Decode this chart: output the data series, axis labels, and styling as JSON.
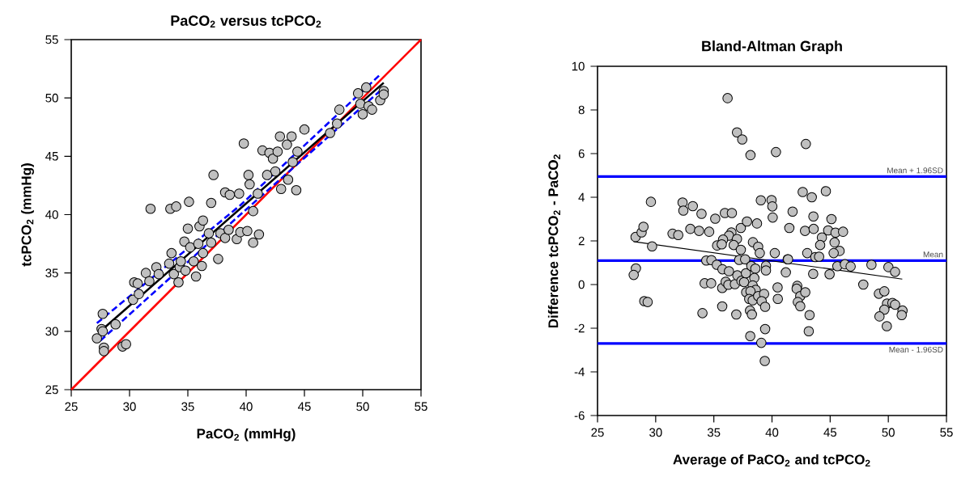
{
  "chart_data": [
    {
      "type": "scatter",
      "title": "PaCO$_{2}$ versus tcPCO$_{2}$",
      "xlabel": "PaCO$_{2}$ (mmHg)",
      "ylabel": "tcPCO$_{2}$ (mmHg)",
      "xlim": [
        25,
        55
      ],
      "ylim": [
        25,
        55
      ],
      "xticks": [
        25,
        30,
        35,
        40,
        45,
        50,
        55
      ],
      "yticks": [
        25,
        30,
        35,
        40,
        45,
        50,
        55
      ],
      "series": [
        {
          "type": "scatter",
          "color": "#c0c0c0",
          "marker": "circle",
          "x": [
            27.2,
            27.6,
            27.7,
            27.8,
            27.8,
            27.7,
            28.8,
            29.4,
            29.7,
            30.3,
            30.4,
            30.7,
            30.8,
            31.4,
            31.7,
            32.3,
            32.5,
            33.4,
            33.6,
            33.8,
            34.2,
            34.3,
            34.4,
            34.7,
            34.8,
            35.0,
            35.2,
            35.5,
            35.7,
            35.9,
            36.0,
            36.2,
            36.3,
            36.8,
            37.0,
            37.6,
            37.8,
            38.2,
            38.5,
            39.2,
            39.5,
            40.1,
            40.6,
            41.1,
            31.8,
            33.5,
            34.0,
            35.1,
            37.2,
            38.2,
            38.6,
            36.3,
            37.0,
            39.4,
            39.8,
            40.2,
            40.3,
            40.6,
            41.0,
            41.4,
            42.0,
            42.3,
            42.7,
            42.9,
            43.5,
            43.9,
            44.4,
            45.0,
            43.0,
            43.6,
            44.3,
            44.0,
            42.5,
            41.8,
            47.2,
            48.0,
            49.6,
            50.3,
            49.8,
            50.0,
            50.5,
            50.8,
            51.5,
            51.8,
            51.8,
            47.8
          ],
          "values": [
            29.4,
            30.2,
            31.5,
            28.6,
            28.3,
            30.0,
            30.6,
            28.7,
            28.9,
            32.7,
            34.2,
            34.1,
            33.2,
            35.0,
            34.3,
            35.5,
            34.9,
            35.8,
            36.7,
            34.9,
            34.2,
            35.5,
            36.0,
            37.7,
            35.2,
            38.8,
            37.2,
            36.0,
            34.7,
            37.5,
            39.0,
            35.6,
            36.7,
            38.4,
            37.6,
            36.2,
            38.4,
            38.0,
            38.7,
            37.9,
            38.5,
            38.6,
            37.6,
            38.3,
            40.5,
            40.5,
            40.7,
            41.1,
            43.4,
            41.9,
            41.7,
            39.5,
            41.0,
            41.8,
            46.1,
            43.4,
            42.6,
            40.3,
            41.8,
            45.5,
            45.3,
            44.8,
            45.4,
            46.7,
            46.0,
            46.7,
            45.4,
            47.3,
            42.2,
            43.0,
            42.1,
            44.5,
            43.7,
            43.4,
            47.0,
            49.0,
            50.4,
            50.9,
            49.5,
            48.6,
            49.3,
            49.0,
            49.8,
            50.6,
            50.3,
            47.8
          ]
        },
        {
          "type": "line",
          "color": "#ff0000",
          "x": [
            25,
            55
          ],
          "values": [
            25,
            55
          ]
        },
        {
          "type": "line",
          "color": "#000000",
          "x": [
            27.5,
            51.8
          ],
          "values": [
            30.0,
            51.3
          ]
        },
        {
          "type": "line",
          "color": "#0000ff",
          "line_style": "dashed",
          "x": [
            27.2,
            39.5,
            51.6
          ],
          "values": [
            30.7,
            40.8,
            52.1
          ]
        },
        {
          "type": "line",
          "color": "#0000ff",
          "line_style": "dashed",
          "x": [
            27.5,
            39.5,
            51.6
          ],
          "values": [
            29.2,
            40.0,
            50.7
          ]
        }
      ]
    },
    {
      "type": "scatter",
      "title": "Bland-Altman Graph",
      "xlabel": "Average of PaCO$_{2}$ and tcPCO$_{2}$",
      "ylabel": "Difference tcPCO$_{2}$ - PaCO$_{2}$",
      "xlim": [
        25,
        55
      ],
      "ylim": [
        -6,
        10
      ],
      "xticks": [
        25,
        30,
        35,
        40,
        45,
        50,
        55
      ],
      "yticks": [
        -6,
        -4,
        -2,
        0,
        2,
        4,
        6,
        8,
        10
      ],
      "ref_lines": [
        {
          "axis": "y",
          "value": 4.95,
          "label": "Mean + 1.96SD",
          "color": "#0000ff"
        },
        {
          "axis": "y",
          "value": 1.1,
          "label": "Mean",
          "color": "#0000ff"
        },
        {
          "axis": "y",
          "value": -2.7,
          "label": "Mean - 1.96SD",
          "color": "#0000ff"
        }
      ],
      "series": [
        {
          "type": "scatter",
          "color": "#c0c0c0",
          "marker": "circle",
          "x": [
            36.18,
            36.99,
            37.44,
            38.15,
            40.34,
            42.91,
            29.59,
            28.27,
            28.79,
            28.95,
            29.69,
            31.45,
            31.94,
            32.31,
            32.38,
            32.98,
            33.19,
            33.73,
            33.94,
            34.6,
            35.12,
            35.95,
            36.55,
            36.51,
            36.3,
            35.79,
            35.28,
            35.68,
            36.99,
            36.71,
            37.32,
            37.32,
            37.85,
            38.71,
            39.04,
            38.36,
            38.81,
            38.95,
            39.96,
            40.03,
            40.06,
            40.24,
            41.49,
            41.77,
            42.64,
            43.42,
            43.56,
            42.84,
            43.58,
            44.63,
            45.11,
            44.83,
            45.46,
            46.11,
            45.38,
            44.29,
            44.14,
            43.03,
            45.81,
            45.3,
            43.72,
            44.05,
            41.35,
            37.18,
            37.69,
            34.35,
            34.79,
            28.3,
            28.11,
            29.02,
            29.31,
            35.26,
            35.74,
            36.3,
            34.21,
            34.77,
            35.72,
            36.02,
            36.25,
            36.81,
            37.02,
            37.37,
            37.6,
            37.76,
            38.22,
            38.57,
            38.48,
            38.34,
            38.6,
            37.78,
            38.15,
            38.04,
            38.34,
            38.81,
            39.32,
            39.11,
            39.41,
            39.48,
            39.48,
            40.48,
            40.5,
            41.19,
            41.38,
            42.17,
            42.12,
            42.43,
            42.86,
            42.22,
            42.43,
            43.23,
            43.16,
            43.54,
            44.95,
            45.62,
            46.27,
            46.76,
            47.85,
            48.55,
            50.01,
            50.58,
            49.19,
            49.66,
            49.89,
            50.35,
            50.58,
            49.66,
            49.24,
            49.87,
            51.22,
            51.15,
            34.02,
            35.72,
            36.93,
            38.11,
            38.27,
            39.41,
            38.13,
            39.08,
            39.38
          ],
          "values": [
            8.54,
            6.97,
            6.65,
            5.93,
            6.07,
            6.44,
            3.79,
            2.18,
            2.39,
            2.65,
            1.75,
            2.33,
            2.27,
            3.76,
            3.39,
            2.55,
            3.59,
            2.46,
            3.24,
            2.42,
            3.02,
            3.28,
            3.28,
            2.39,
            2.24,
            2.06,
            1.79,
            1.84,
            2.09,
            1.81,
            1.59,
            2.59,
            2.89,
            2.8,
            3.86,
            1.94,
            1.73,
            1.44,
            3.87,
            3.58,
            3.07,
            1.44,
            2.59,
            3.34,
            4.24,
            4.0,
            3.12,
            2.46,
            2.55,
            4.28,
            3.0,
            2.48,
            2.38,
            2.42,
            1.93,
            2.16,
            1.81,
            1.44,
            1.54,
            1.44,
            1.26,
            1.28,
            1.16,
            1.13,
            1.16,
            1.1,
            1.12,
            0.74,
            0.44,
            -0.76,
            -0.8,
            0.91,
            0.7,
            0.61,
            0.06,
            0.06,
            -0.16,
            0.13,
            -0.01,
            0.02,
            0.42,
            0.17,
            0.11,
            0.52,
            0.85,
            0.73,
            0.3,
            -0.04,
            -0.24,
            -0.35,
            -0.31,
            -0.66,
            -0.72,
            -0.53,
            -0.43,
            -0.76,
            -1.02,
            0.86,
            0.65,
            -0.13,
            -0.66,
            0.56,
            1.16,
            -0.06,
            -0.19,
            -0.53,
            -0.35,
            -0.8,
            -0.99,
            -1.4,
            -2.14,
            0.49,
            0.47,
            0.84,
            0.93,
            0.83,
            0.0,
            0.91,
            0.8,
            0.58,
            -0.42,
            -0.31,
            -0.87,
            -0.84,
            -0.92,
            -1.15,
            -1.46,
            -1.91,
            -1.19,
            -1.4,
            -1.31,
            -1.0,
            -1.37,
            -1.19,
            -1.37,
            -2.04,
            -2.36,
            -2.67,
            -3.5
          ]
        },
        {
          "type": "line",
          "color": "#000000",
          "x": [
            28.1,
            51.2
          ],
          "values": [
            1.97,
            0.25
          ]
        }
      ]
    }
  ]
}
